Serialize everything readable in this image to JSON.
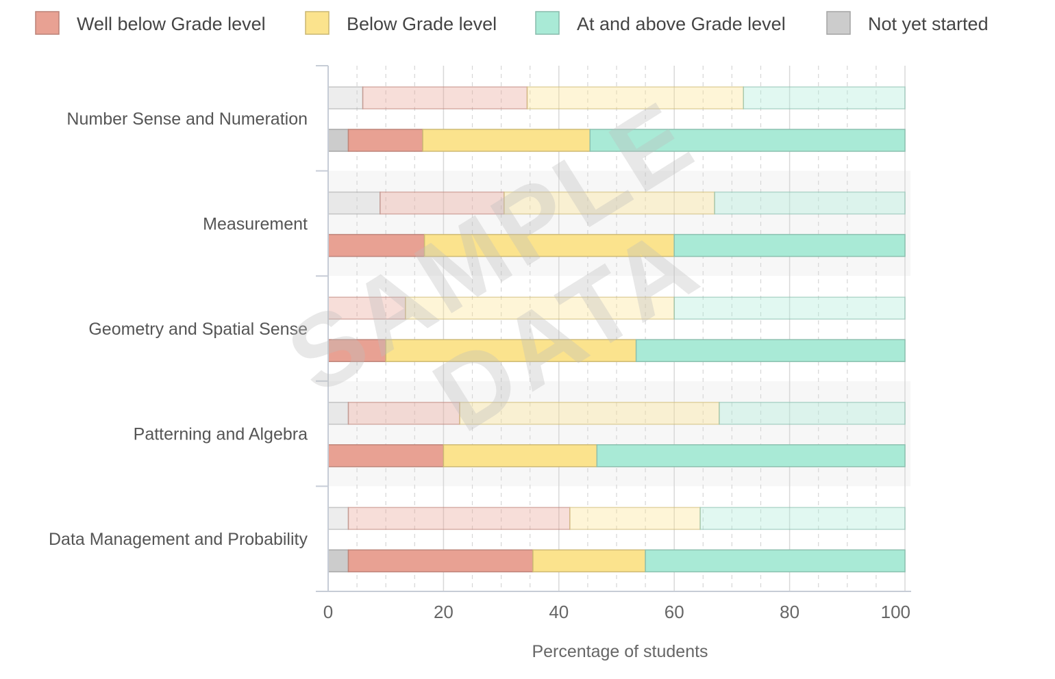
{
  "chart_data": {
    "type": "bar",
    "orientation": "horizontal",
    "stacked": true,
    "categories": [
      "Number Sense and Numeration",
      "Measurement",
      "Geometry and Spatial Sense",
      "Patterning and Algebra",
      "Data Management and Probability"
    ],
    "series": [
      {
        "name": "Not yet started",
        "color": "#cccccc"
      },
      {
        "name": "Well below Grade level",
        "color": "#e8a193"
      },
      {
        "name": "Below Grade level",
        "color": "#fbe38d"
      },
      {
        "name": "At and above Grade level",
        "color": "#a9ead6"
      }
    ],
    "legend_order": [
      1,
      2,
      3,
      0
    ],
    "legend_placement": "top",
    "rows": [
      {
        "category_index": 0,
        "faded": true,
        "values": [
          6,
          28.5,
          37.5,
          28
        ]
      },
      {
        "category_index": 0,
        "faded": false,
        "values": [
          3.5,
          12.9,
          29,
          54.6
        ]
      },
      {
        "category_index": 1,
        "faded": true,
        "values": [
          9,
          21.5,
          36.5,
          33
        ]
      },
      {
        "category_index": 1,
        "faded": false,
        "values": [
          0,
          16.7,
          43.3,
          40
        ]
      },
      {
        "category_index": 2,
        "faded": true,
        "values": [
          0,
          13.4,
          46.6,
          40
        ]
      },
      {
        "category_index": 2,
        "faded": false,
        "values": [
          0,
          10,
          43.4,
          46.6
        ]
      },
      {
        "category_index": 3,
        "faded": true,
        "values": [
          3.5,
          19.3,
          45,
          32.2
        ]
      },
      {
        "category_index": 3,
        "faded": false,
        "values": [
          0,
          20,
          26.6,
          53.4
        ]
      },
      {
        "category_index": 4,
        "faded": true,
        "values": [
          3.5,
          38.4,
          22.6,
          35.5
        ]
      },
      {
        "category_index": 4,
        "faded": false,
        "values": [
          3.5,
          32,
          19.5,
          45
        ]
      }
    ],
    "xlim": [
      0,
      100
    ],
    "xticks": [
      0,
      20,
      40,
      60,
      80,
      100
    ],
    "xlabel": "Percentage of students",
    "ylabel": "",
    "grid": true,
    "watermark": [
      "SAMPLE",
      "DATA"
    ]
  }
}
